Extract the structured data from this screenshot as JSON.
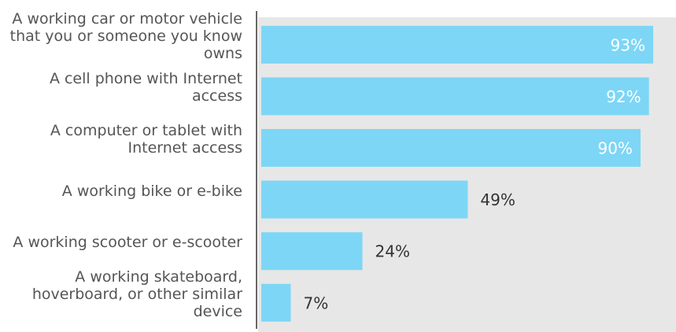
{
  "chart_data": {
    "type": "bar",
    "orientation": "horizontal",
    "categories": [
      "A working car or motor vehicle that you or someone you know owns",
      "A cell phone with Internet access",
      "A computer or tablet with Internet access",
      "A working bike or e-bike",
      "A working scooter or e-scooter",
      "A working skateboard, hoverboard, or other similar device"
    ],
    "values": [
      93,
      92,
      90,
      49,
      24,
      7
    ],
    "value_labels": [
      "93%",
      "92%",
      "90%",
      "49%",
      "24%",
      "7%"
    ],
    "color": "#7dd6f5"
  }
}
